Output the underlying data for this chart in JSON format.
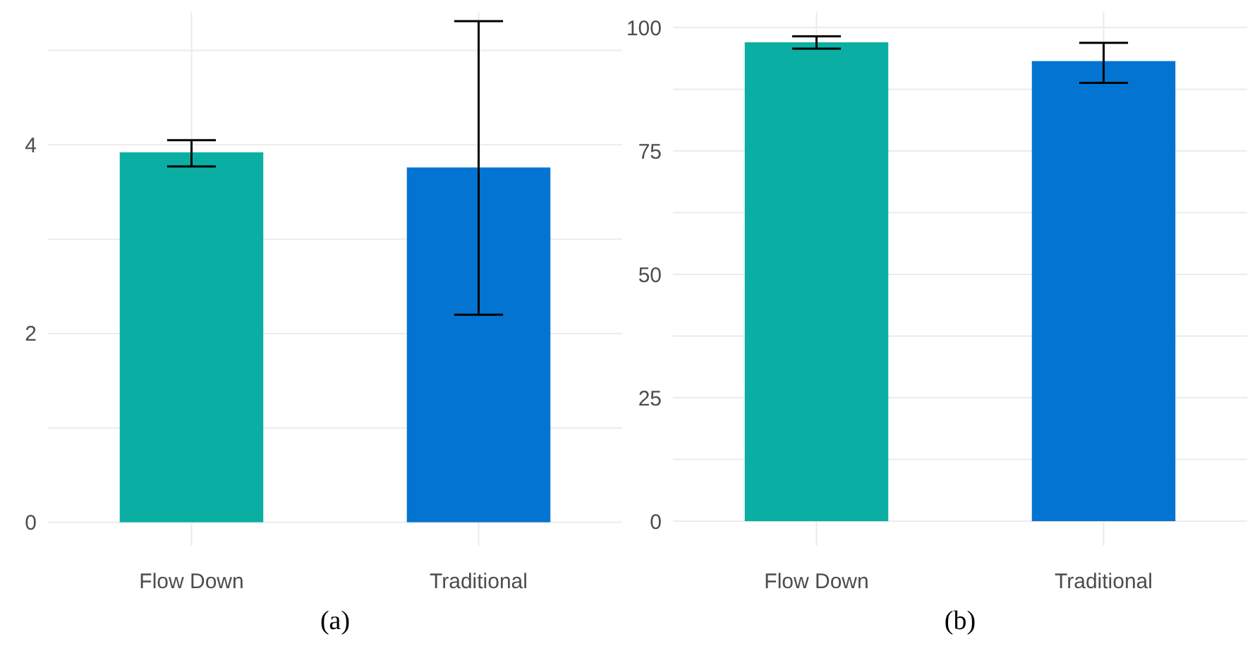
{
  "chart_data": [
    {
      "type": "bar",
      "categories": [
        "Flow Down",
        "Traditional"
      ],
      "values": [
        3.92,
        3.76
      ],
      "colors": [
        "#0aaea3",
        "#0474d2"
      ],
      "errors": [
        [
          3.77,
          4.05
        ],
        [
          2.2,
          5.31
        ]
      ],
      "ylim": [
        -0.25,
        5.4
      ],
      "yticks": [
        0,
        {
          "value": 1,
          "label": null
        },
        2,
        {
          "value": 3,
          "label": null
        },
        4,
        {
          "value": 5,
          "label": null
        }
      ],
      "grid": true,
      "annotations": [
        "(a)"
      ]
    },
    {
      "type": "bar",
      "categories": [
        "Flow Down",
        "Traditional"
      ],
      "values": [
        97.0,
        93.2
      ],
      "colors": [
        "#0aaea3",
        "#0474d2"
      ],
      "errors": [
        [
          95.7,
          98.2
        ],
        [
          88.8,
          96.9
        ]
      ],
      "ylim": [
        -5,
        103
      ],
      "yticks": [
        0,
        {
          "value": 12.5,
          "label": null
        },
        25,
        {
          "value": 37.5,
          "label": null
        },
        50,
        {
          "value": 62.5,
          "label": null
        },
        75,
        {
          "value": 87.5,
          "label": null
        },
        100
      ],
      "grid": true,
      "annotations": [
        "(b)"
      ]
    }
  ]
}
